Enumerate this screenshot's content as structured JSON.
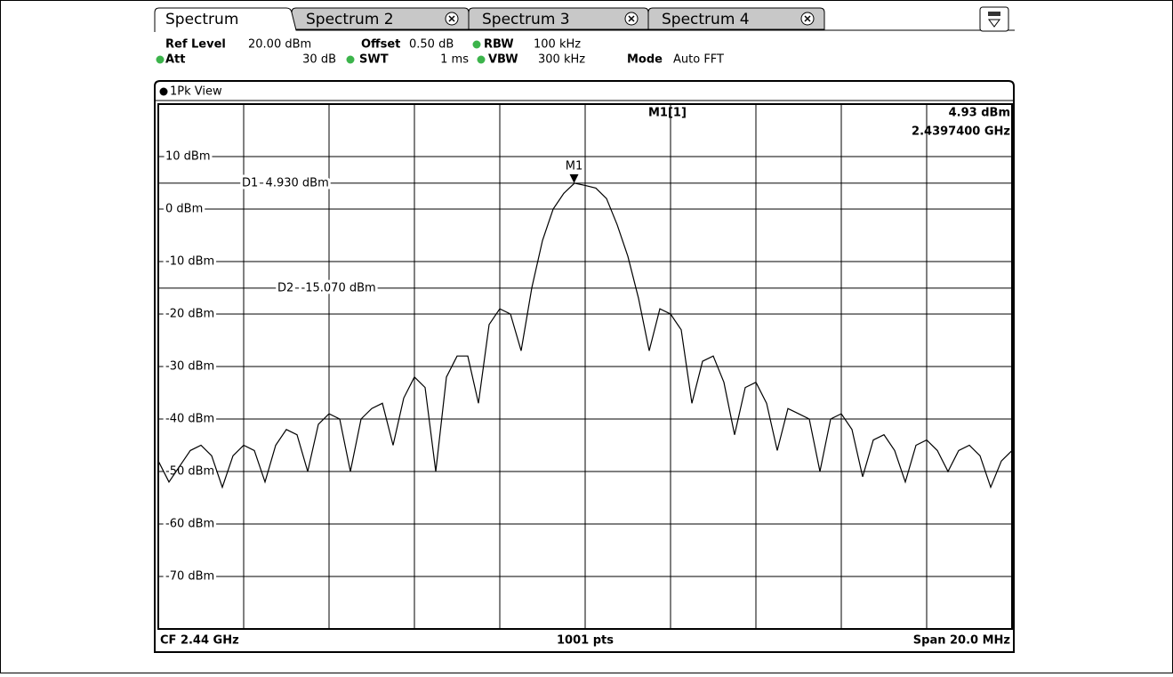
{
  "tabs": [
    "Spectrum",
    "Spectrum 2",
    "Spectrum 3",
    "Spectrum 4"
  ],
  "settings": {
    "ref_level": {
      "label": "Ref Level",
      "value": "20.00 dBm"
    },
    "offset": {
      "label": "Offset",
      "value": "0.50 dB"
    },
    "rbw": {
      "label": "RBW",
      "value": "100 kHz"
    },
    "att": {
      "label": "Att",
      "value": "30 dB"
    },
    "swt": {
      "label": "SWT",
      "value": "1 ms"
    },
    "vbw": {
      "label": "VBW",
      "value": "300 kHz"
    },
    "mode": {
      "label": "Mode",
      "value": "Auto FFT"
    }
  },
  "view_title": "1Pk View",
  "footer": {
    "left": "CF 2.44 GHz",
    "center": "1001 pts",
    "right": "Span 20.0 MHz"
  },
  "marker_readout": {
    "name": "M1[1]",
    "level": "4.93 dBm",
    "frequency": "2.4397400 GHz"
  },
  "chart_data": {
    "type": "line",
    "color": "#000000",
    "grid": true,
    "xlim": [
      2.43,
      2.45
    ],
    "xticks": [
      2.43,
      2.432,
      2.434,
      2.436,
      2.438,
      2.44,
      2.442,
      2.444,
      2.446,
      2.448,
      2.45
    ],
    "ylim": [
      -80,
      20
    ],
    "yticks": [
      {
        "value": 10,
        "label": "10 dBm"
      },
      {
        "value": 0,
        "label": "0 dBm"
      },
      {
        "value": -10,
        "label": "-10 dBm"
      },
      {
        "value": -20,
        "label": "-20 dBm"
      },
      {
        "value": -30,
        "label": "-30 dBm"
      },
      {
        "value": -40,
        "label": "-40 dBm"
      },
      {
        "value": -50,
        "label": "-50 dBm"
      },
      {
        "value": -60,
        "label": "-60 dBm"
      },
      {
        "value": -70,
        "label": "-70 dBm"
      }
    ],
    "x": [
      2.43,
      2.43025,
      2.4305,
      2.43075,
      2.431,
      2.43125,
      2.4315,
      2.43175,
      2.432,
      2.43225,
      2.4325,
      2.43275,
      2.433,
      2.43325,
      2.4335,
      2.43375,
      2.434,
      2.43425,
      2.4345,
      2.43475,
      2.435,
      2.43525,
      2.4355,
      2.43575,
      2.436,
      2.43625,
      2.4365,
      2.43675,
      2.437,
      2.43725,
      2.4375,
      2.43775,
      2.438,
      2.43825,
      2.4385,
      2.43875,
      2.439,
      2.43925,
      2.4395,
      2.43975,
      2.44,
      2.44025,
      2.4405,
      2.44075,
      2.441,
      2.44125,
      2.4415,
      2.44175,
      2.442,
      2.44225,
      2.4425,
      2.44275,
      2.443,
      2.44325,
      2.4435,
      2.44375,
      2.444,
      2.44425,
      2.4445,
      2.44475,
      2.445,
      2.44525,
      2.4455,
      2.44575,
      2.446,
      2.44625,
      2.4465,
      2.44675,
      2.447,
      2.44725,
      2.4475,
      2.44775,
      2.448,
      2.44825,
      2.4485,
      2.44875,
      2.449,
      2.44925,
      2.4495,
      2.44975,
      2.45
    ],
    "values": [
      -48,
      -52,
      -49,
      -46,
      -45,
      -47,
      -53,
      -47,
      -45,
      -46,
      -52,
      -45,
      -42,
      -43,
      -50,
      -41,
      -39,
      -40,
      -50,
      -40,
      -38,
      -37,
      -45,
      -36,
      -32,
      -34,
      -50,
      -32,
      -28,
      -28,
      -37,
      -22,
      -19,
      -20,
      -27,
      -15,
      -6,
      0,
      3,
      4.93,
      4.5,
      4,
      2,
      -3,
      -9,
      -17,
      -27,
      -19,
      -20,
      -23,
      -37,
      -29,
      -28,
      -33,
      -43,
      -34,
      -33,
      -37,
      -46,
      -38,
      -39,
      -40,
      -50,
      -40,
      -39,
      -42,
      -51,
      -44,
      -43,
      -46,
      -52,
      -45,
      -44,
      -46,
      -50,
      -46,
      -45,
      -47,
      -53,
      -48,
      -46
    ],
    "display_lines": [
      {
        "label": "D1  4.930 dBm",
        "value": 4.93
      },
      {
        "label": "D2  -15.070 dBm",
        "value": -15.07
      }
    ],
    "markers": [
      {
        "label": "M1",
        "x": 2.43974,
        "y": 4.93
      }
    ]
  }
}
